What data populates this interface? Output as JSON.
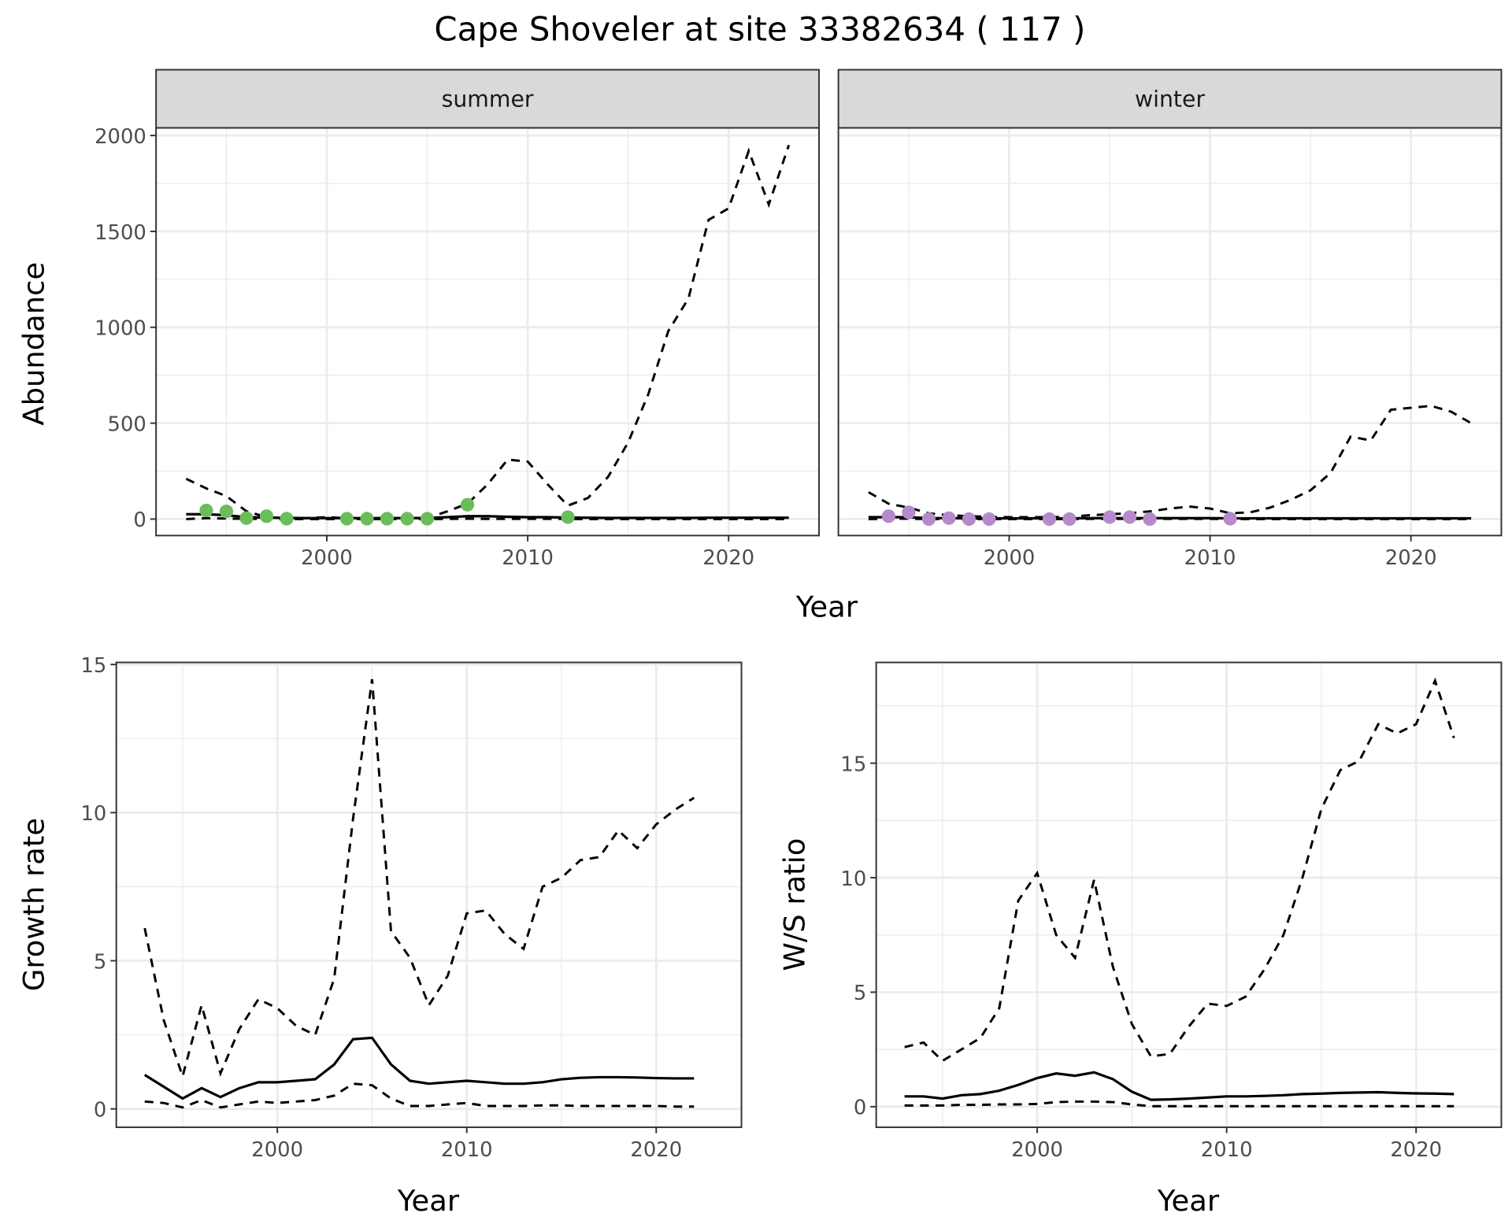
{
  "title": "Cape Shoveler at site 33382634 ( 117 )",
  "chart_data": [
    {
      "type": "line",
      "facet": "summer",
      "xlabel": "Year",
      "ylabel": "Abundance",
      "xlim": [
        1991.5,
        2024.5
      ],
      "ylim": [
        -86,
        2040
      ],
      "xticks": [
        2000,
        2010,
        2020
      ],
      "xtick_labels": [
        "2000",
        "2010",
        "2020"
      ],
      "yticks": [
        0,
        500,
        1000,
        1500,
        2000
      ],
      "ytick_labels": [
        "0",
        "500",
        "1000",
        "1500",
        "2000"
      ],
      "grid": true,
      "x": [
        1993,
        1994,
        1995,
        1996,
        1997,
        1998,
        1999,
        2000,
        2001,
        2002,
        2003,
        2004,
        2005,
        2006,
        2007,
        2008,
        2009,
        2010,
        2011,
        2012,
        2013,
        2014,
        2015,
        2016,
        2017,
        2018,
        2019,
        2020,
        2021,
        2022,
        2023
      ],
      "series": [
        {
          "name": "upper",
          "style": "dashed",
          "values": [
            210,
            160,
            120,
            40,
            10,
            5,
            5,
            10,
            5,
            5,
            5,
            5,
            5,
            40,
            80,
            180,
            310,
            300,
            180,
            70,
            110,
            220,
            400,
            650,
            980,
            1150,
            1560,
            1620,
            1920,
            1640,
            1950
          ]
        },
        {
          "name": "mean",
          "style": "solid",
          "values": [
            25,
            25,
            20,
            10,
            8,
            6,
            5,
            5,
            5,
            5,
            5,
            5,
            6,
            10,
            15,
            15,
            12,
            10,
            10,
            8,
            7,
            6,
            6,
            6,
            6,
            6,
            7,
            7,
            7,
            7,
            7
          ]
        },
        {
          "name": "lower",
          "style": "dashed",
          "values": [
            0,
            5,
            3,
            1,
            1,
            0,
            0,
            0,
            0,
            0,
            0,
            0,
            0,
            1,
            2,
            1,
            1,
            1,
            1,
            1,
            0,
            0,
            0,
            0,
            0,
            0,
            0,
            0,
            0,
            0,
            0
          ]
        }
      ],
      "points": {
        "color": "#6ABD5A",
        "x": [
          1994,
          1995,
          1996,
          1997,
          1998,
          2001,
          2002,
          2003,
          2004,
          2005,
          2007,
          2012
        ],
        "y": [
          45,
          40,
          5,
          15,
          2,
          2,
          2,
          2,
          2,
          2,
          75,
          10
        ]
      }
    },
    {
      "type": "line",
      "facet": "winter",
      "xlabel": "Year",
      "xlim": [
        1991.5,
        2024.5
      ],
      "ylim": [
        -86,
        2040
      ],
      "xticks": [
        2000,
        2010,
        2020
      ],
      "xtick_labels": [
        "2000",
        "2010",
        "2020"
      ],
      "grid": true,
      "x": [
        1993,
        1994,
        1995,
        1996,
        1997,
        1998,
        1999,
        2000,
        2001,
        2002,
        2003,
        2004,
        2005,
        2006,
        2007,
        2008,
        2009,
        2010,
        2011,
        2012,
        2013,
        2014,
        2015,
        2016,
        2017,
        2018,
        2019,
        2020,
        2021,
        2022,
        2023
      ],
      "series": [
        {
          "name": "upper",
          "style": "dashed",
          "values": [
            140,
            80,
            60,
            30,
            20,
            15,
            12,
            10,
            10,
            10,
            12,
            20,
            25,
            30,
            40,
            55,
            65,
            55,
            30,
            35,
            60,
            100,
            150,
            240,
            430,
            410,
            570,
            580,
            590,
            560,
            500
          ]
        },
        {
          "name": "mean",
          "style": "solid",
          "values": [
            10,
            10,
            10,
            5,
            5,
            4,
            4,
            4,
            4,
            4,
            4,
            5,
            5,
            5,
            5,
            5,
            5,
            5,
            4,
            4,
            4,
            4,
            4,
            4,
            4,
            4,
            4,
            4,
            4,
            4,
            4
          ]
        },
        {
          "name": "lower",
          "style": "dashed",
          "values": [
            0,
            2,
            2,
            0,
            0,
            0,
            0,
            0,
            0,
            0,
            0,
            1,
            1,
            1,
            1,
            1,
            1,
            1,
            0,
            0,
            0,
            0,
            0,
            0,
            0,
            0,
            0,
            0,
            0,
            0,
            0
          ]
        }
      ],
      "points": {
        "color": "#B48ACB",
        "x": [
          1994,
          1995,
          1996,
          1997,
          1998,
          1999,
          2002,
          2003,
          2005,
          2006,
          2007,
          2011
        ],
        "y": [
          15,
          35,
          0,
          5,
          0,
          0,
          0,
          0,
          10,
          10,
          0,
          2
        ]
      }
    },
    {
      "type": "line",
      "xlabel": "Year",
      "ylabel": "Growth rate",
      "xlim": [
        1991.5,
        2024.5
      ],
      "ylim": [
        -0.62,
        15.07
      ],
      "xticks": [
        2000,
        2010,
        2020
      ],
      "xtick_labels": [
        "2000",
        "2010",
        "2020"
      ],
      "yticks": [
        0,
        5,
        10,
        15
      ],
      "ytick_labels": [
        "0",
        "5",
        "10",
        "15"
      ],
      "grid": true,
      "x": [
        1993,
        1994,
        1995,
        1996,
        1997,
        1998,
        1999,
        2000,
        2001,
        2002,
        2003,
        2004,
        2005,
        2006,
        2007,
        2008,
        2009,
        2010,
        2011,
        2012,
        2013,
        2014,
        2015,
        2016,
        2017,
        2018,
        2019,
        2020,
        2021,
        2022
      ],
      "series": [
        {
          "name": "upper",
          "style": "dashed",
          "values": [
            6.1,
            3.0,
            1.1,
            3.5,
            1.2,
            2.7,
            3.7,
            3.4,
            2.8,
            2.5,
            4.4,
            9.8,
            14.5,
            6.0,
            5.1,
            3.5,
            4.5,
            6.6,
            6.7,
            5.9,
            5.4,
            7.5,
            7.8,
            8.4,
            8.5,
            9.4,
            8.8,
            9.6,
            10.1,
            10.5
          ]
        },
        {
          "name": "mean",
          "style": "solid",
          "values": [
            1.15,
            0.75,
            0.35,
            0.7,
            0.4,
            0.7,
            0.9,
            0.9,
            0.95,
            1.0,
            1.5,
            2.35,
            2.4,
            1.5,
            0.95,
            0.85,
            0.9,
            0.95,
            0.9,
            0.85,
            0.85,
            0.9,
            1.0,
            1.05,
            1.07,
            1.07,
            1.06,
            1.04,
            1.03,
            1.03
          ]
        },
        {
          "name": "lower",
          "style": "dashed",
          "values": [
            0.25,
            0.2,
            0.05,
            0.3,
            0.05,
            0.15,
            0.25,
            0.2,
            0.25,
            0.3,
            0.45,
            0.85,
            0.8,
            0.35,
            0.1,
            0.1,
            0.15,
            0.2,
            0.1,
            0.1,
            0.1,
            0.12,
            0.12,
            0.1,
            0.1,
            0.1,
            0.1,
            0.1,
            0.08,
            0.08
          ]
        }
      ]
    },
    {
      "type": "line",
      "xlabel": "Year",
      "ylabel": "W/S ratio",
      "xlim": [
        1991.5,
        2024.5
      ],
      "ylim": [
        -0.9,
        19.4
      ],
      "xticks": [
        2000,
        2010,
        2020
      ],
      "xtick_labels": [
        "2000",
        "2010",
        "2020"
      ],
      "yticks": [
        0,
        5,
        10,
        15
      ],
      "ytick_labels": [
        "0",
        "5",
        "10",
        "15"
      ],
      "grid": true,
      "x": [
        1993,
        1994,
        1995,
        1996,
        1997,
        1998,
        1999,
        2000,
        2001,
        2002,
        2003,
        2004,
        2005,
        2006,
        2007,
        2008,
        2009,
        2010,
        2011,
        2012,
        2013,
        2014,
        2015,
        2016,
        2017,
        2018,
        2019,
        2020,
        2021,
        2022
      ],
      "series": [
        {
          "name": "upper",
          "style": "dashed",
          "values": [
            2.6,
            2.8,
            2.0,
            2.5,
            3.0,
            4.3,
            9.0,
            10.2,
            7.5,
            6.5,
            9.9,
            6.1,
            3.6,
            2.2,
            2.3,
            3.5,
            4.5,
            4.4,
            4.8,
            6.0,
            7.5,
            10.0,
            13.0,
            14.7,
            15.1,
            16.7,
            16.3,
            16.7,
            18.6,
            16.1
          ]
        },
        {
          "name": "mean",
          "style": "solid",
          "values": [
            0.45,
            0.45,
            0.35,
            0.5,
            0.55,
            0.7,
            0.95,
            1.25,
            1.45,
            1.35,
            1.5,
            1.2,
            0.65,
            0.3,
            0.32,
            0.35,
            0.4,
            0.45,
            0.45,
            0.47,
            0.5,
            0.55,
            0.57,
            0.6,
            0.62,
            0.63,
            0.6,
            0.58,
            0.57,
            0.55
          ]
        },
        {
          "name": "lower",
          "style": "dashed",
          "values": [
            0.05,
            0.05,
            0.05,
            0.08,
            0.08,
            0.1,
            0.1,
            0.12,
            0.2,
            0.22,
            0.22,
            0.2,
            0.1,
            0.02,
            0.02,
            0.02,
            0.02,
            0.02,
            0.02,
            0.02,
            0.02,
            0.02,
            0.02,
            0.02,
            0.02,
            0.02,
            0.02,
            0.02,
            0.02,
            0.02
          ]
        }
      ]
    }
  ]
}
